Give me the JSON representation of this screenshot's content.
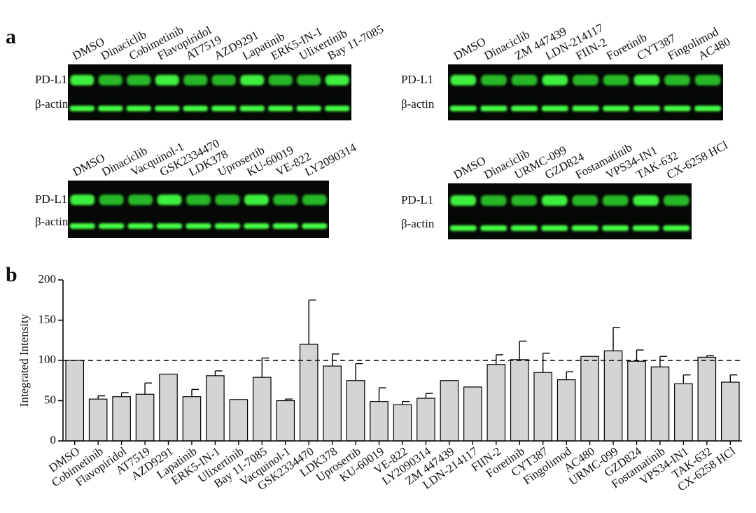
{
  "panel_a": {
    "label": "a",
    "blots": [
      {
        "lanes": [
          "DMSO",
          "Dinaciclib",
          "Cobimetinib",
          "Flavopiridol",
          "AT7519",
          "AZD9291",
          "Lapatinib",
          "ERK5-IN-1",
          "Ulixertinib",
          "Bay 11-7085"
        ],
        "rows": [
          "PD-L1",
          "β-actin"
        ]
      },
      {
        "lanes": [
          "DMSO",
          "Dinaciclib",
          "ZM 447439",
          "LDN-214117",
          "FIIN-2",
          "Foretinib",
          "CYT387",
          "Fingolimod",
          "AC480"
        ],
        "rows": [
          "PD-L1",
          "β-actin"
        ]
      },
      {
        "lanes": [
          "DMSO",
          "Dinaciclib",
          "Vacquinol-1",
          "GSK2334470",
          "LDK378",
          "Uprosertib",
          "KU-60019",
          "VE-822",
          "LY2090314"
        ],
        "rows": [
          "PD-L1",
          "β-actin"
        ]
      },
      {
        "lanes": [
          "DMSO",
          "Dinaciclib",
          "URMC-099",
          "GZD824",
          "Fostamatinib",
          "VPS34-IN1",
          "TAK-632",
          "CX-6258 HCl"
        ],
        "rows": [
          "PD-L1",
          "β-actin"
        ]
      }
    ]
  },
  "chart_data": {
    "type": "bar",
    "panel_label": "b",
    "y_label": "Integrated Intensity",
    "categories": [
      "DMSO",
      "Cobimetinib",
      "Flavopiridol",
      "AT7519",
      "AZD9291",
      "Lapatinib",
      "ERK5-IN-1",
      "Ulixertinib",
      "Bay 11-7085",
      "Vacquinol-1",
      "GSK2334470",
      "LDK378",
      "Uprosertib",
      "KU-60019",
      "VE-822",
      "LY2090314",
      "ZM 447439",
      "LDN-214117",
      "FIIN-2",
      "Foretinib",
      "CYT387",
      "Fingolimod",
      "AC480",
      "URMC-099",
      "GZD824",
      "Fostamatinib",
      "VPS34-IN1",
      "TAK-632",
      "CX-6258 HCl"
    ],
    "values": [
      100,
      52,
      55,
      58,
      83,
      55,
      81,
      51.5,
      79,
      50,
      120,
      93,
      75,
      49,
      45,
      53,
      75,
      67,
      95,
      101,
      85,
      76,
      105,
      112,
      99,
      92,
      71,
      104,
      73
    ],
    "errors": [
      null,
      4,
      5,
      14,
      null,
      9,
      6,
      null,
      24,
      2,
      55,
      15,
      21,
      17,
      4,
      6,
      null,
      null,
      12,
      23,
      24,
      10,
      null,
      29,
      14,
      13,
      11,
      2,
      9
    ],
    "color": "#d4d4d4",
    "ylim": [
      0,
      200
    ],
    "yticks": [
      0,
      50,
      100,
      150,
      200
    ],
    "reference_line": 100
  }
}
